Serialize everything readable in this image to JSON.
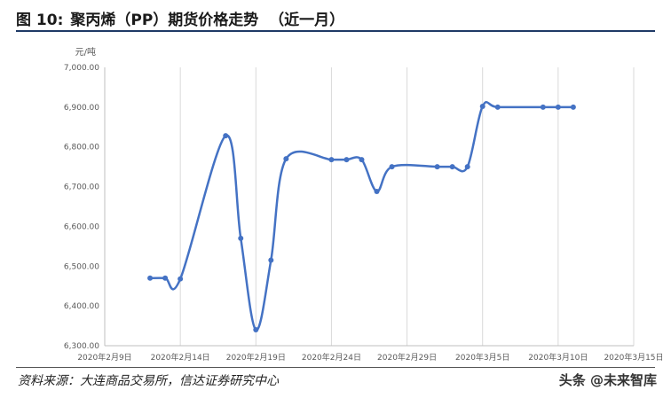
{
  "header": {
    "figure_label": "图 10:",
    "title": "聚丙烯（PP）期货价格走势  （近一月）"
  },
  "source": "资料来源：大连商品交易所，信达证券研究中心",
  "watermark": "头条 @未来智库",
  "colors": {
    "line": "#4472C4",
    "grid": "#d9d9d9",
    "axis_text": "#595959",
    "header_rule": "#1f3a66"
  },
  "chart_data": {
    "type": "line",
    "unit_label": "元/吨",
    "ylim": [
      6300,
      7000
    ],
    "yticks": [
      6300,
      6400,
      6500,
      6600,
      6700,
      6800,
      6900,
      7000
    ],
    "ytick_labels": [
      "6,300.00",
      "6,400.00",
      "6,500.00",
      "6,600.00",
      "6,700.00",
      "6,800.00",
      "6,900.00",
      "7,000.00"
    ],
    "xlim": [
      "2020-02-09",
      "2020-03-15"
    ],
    "xticks": [
      "2020-02-09",
      "2020-02-14",
      "2020-02-19",
      "2020-02-24",
      "2020-02-29",
      "2020-03-05",
      "2020-03-10",
      "2020-03-15"
    ],
    "xtick_labels": [
      "2020年2月9日",
      "2020年2月14日",
      "2020年2月19日",
      "2020年2月24日",
      "2020年2月29日",
      "2020年3月5日",
      "2020年3月10日",
      "2020年3月15日"
    ],
    "grid": "vertical",
    "smooth": true,
    "series": [
      {
        "x": [
          "2020-02-12",
          "2020-02-13",
          "2020-02-14",
          "2020-02-17",
          "2020-02-18",
          "2020-02-19",
          "2020-02-20",
          "2020-02-21",
          "2020-02-24",
          "2020-02-25",
          "2020-02-26",
          "2020-02-27",
          "2020-02-28",
          "2020-03-02",
          "2020-03-03",
          "2020-03-04",
          "2020-03-05",
          "2020-03-06",
          "2020-03-09",
          "2020-03-10",
          "2020-03-11"
        ],
        "values": [
          6470,
          6470,
          6468,
          6828,
          6570,
          6340,
          6515,
          6770,
          6768,
          6768,
          6768,
          6688,
          6750,
          6750,
          6750,
          6750,
          6902,
          6900,
          6900,
          6900,
          6900
        ]
      }
    ]
  }
}
